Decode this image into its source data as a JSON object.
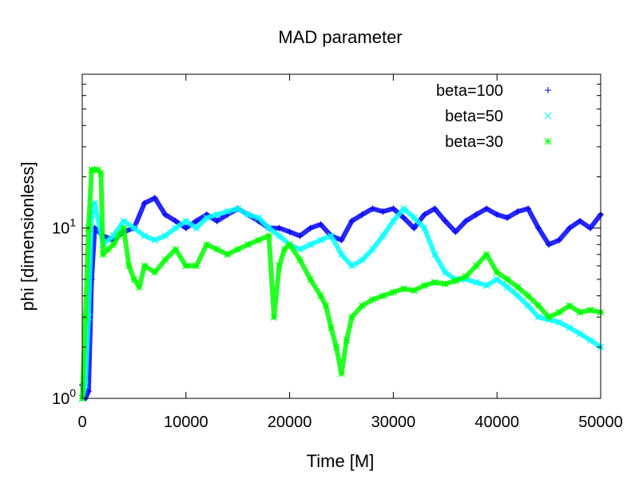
{
  "chart_data": {
    "type": "scatter",
    "title": "MAD parameter",
    "xlabel": "Time [M]",
    "ylabel": "phi [dimensionless]",
    "xlim": [
      0,
      50000
    ],
    "ylim": [
      1,
      80
    ],
    "yscale": "log",
    "grid": false,
    "legend_position": "top-right",
    "x_ticks": [
      0,
      10000,
      20000,
      30000,
      40000,
      50000
    ],
    "x_tick_labels": [
      "0",
      "10000",
      "20000",
      "30000",
      "40000",
      "50000"
    ],
    "y_ticks": [
      1,
      10
    ],
    "y_tick_labels": [
      {
        "base": "10",
        "exp": "0"
      },
      {
        "base": "10",
        "exp": "1"
      }
    ],
    "series": [
      {
        "name": "beta=100",
        "marker": "+",
        "color": "#0000ff",
        "x": [
          0,
          300,
          600,
          900,
          1200,
          2000,
          3000,
          4000,
          5000,
          6000,
          7000,
          8000,
          9000,
          10000,
          11000,
          12000,
          13000,
          14000,
          15000,
          16000,
          17000,
          18000,
          19000,
          20000,
          21000,
          22000,
          23000,
          24000,
          25000,
          26000,
          27000,
          28000,
          29000,
          30000,
          31000,
          32000,
          33000,
          34000,
          35000,
          36000,
          37000,
          38000,
          39000,
          40000,
          41000,
          42000,
          43000,
          44000,
          45000,
          46000,
          47000,
          48000,
          49000,
          50000
        ],
        "y": [
          1.2,
          1.0,
          1.1,
          5.0,
          10.0,
          9.0,
          8.5,
          9.5,
          10.0,
          14.0,
          15.0,
          12.0,
          11.0,
          10.0,
          11.0,
          12.0,
          11.0,
          12.0,
          13.0,
          12.0,
          11.0,
          10.0,
          10.0,
          9.5,
          9.0,
          10.0,
          10.5,
          9.0,
          8.5,
          11.0,
          12.0,
          13.0,
          12.5,
          13.0,
          11.5,
          10.0,
          12.0,
          13.0,
          11.0,
          9.5,
          11.0,
          12.0,
          13.0,
          12.0,
          11.5,
          12.5,
          13.0,
          10.0,
          8.0,
          8.5,
          10.0,
          11.0,
          10.0,
          12.0
        ]
      },
      {
        "name": "beta=50",
        "marker": "x",
        "color": "#00ffff",
        "x": [
          0,
          300,
          600,
          900,
          1200,
          2000,
          3000,
          4000,
          5000,
          6000,
          7000,
          8000,
          9000,
          10000,
          11000,
          12000,
          13000,
          14000,
          15000,
          16000,
          17000,
          18000,
          19000,
          20000,
          21000,
          22000,
          23000,
          24000,
          25000,
          26000,
          27000,
          28000,
          29000,
          30000,
          31000,
          32000,
          33000,
          34000,
          35000,
          36000,
          37000,
          38000,
          39000,
          40000,
          41000,
          42000,
          43000,
          44000,
          45000,
          46000,
          47000,
          48000,
          49000,
          50000
        ],
        "y": [
          1.0,
          1.2,
          3.0,
          12.0,
          14.0,
          8.0,
          9.0,
          11.0,
          10.0,
          9.0,
          8.5,
          9.0,
          10.0,
          11.0,
          10.0,
          11.5,
          12.0,
          12.5,
          13.0,
          12.0,
          11.5,
          10.0,
          9.0,
          8.0,
          7.5,
          8.0,
          8.5,
          9.0,
          7.0,
          6.0,
          6.5,
          7.5,
          9.0,
          11.0,
          13.0,
          11.5,
          10.0,
          7.0,
          5.5,
          5.0,
          5.0,
          4.8,
          4.6,
          5.0,
          4.5,
          4.0,
          3.5,
          3.0,
          2.9,
          2.8,
          2.6,
          2.4,
          2.2,
          2.0
        ]
      },
      {
        "name": "beta=30",
        "marker": "*",
        "color": "#00ff00",
        "x": [
          0,
          300,
          600,
          900,
          1200,
          1500,
          1800,
          2000,
          2500,
          3000,
          3500,
          4000,
          4500,
          5000,
          5500,
          6000,
          7000,
          8000,
          9000,
          10000,
          11000,
          12000,
          13000,
          14000,
          15000,
          16000,
          17000,
          18000,
          18500,
          19000,
          19500,
          20000,
          21000,
          22000,
          23000,
          23500,
          24000,
          24500,
          25000,
          25500,
          26000,
          27000,
          28000,
          29000,
          30000,
          31000,
          32000,
          33000,
          34000,
          35000,
          36000,
          37000,
          38000,
          39000,
          40000,
          41000,
          42000,
          43000,
          44000,
          45000,
          46000,
          47000,
          48000,
          49000,
          50000
        ],
        "y": [
          1.0,
          3.0,
          10.0,
          22.0,
          22.0,
          22.0,
          21.0,
          7.0,
          7.5,
          8.0,
          9.0,
          10.0,
          6.0,
          5.0,
          4.5,
          6.0,
          5.5,
          6.5,
          7.5,
          6.0,
          6.0,
          8.0,
          7.5,
          7.0,
          7.5,
          8.0,
          8.5,
          9.0,
          3.0,
          6.0,
          7.5,
          8.0,
          6.5,
          5.0,
          4.0,
          3.5,
          2.6,
          2.0,
          1.4,
          2.2,
          3.0,
          3.5,
          3.8,
          4.0,
          4.2,
          4.4,
          4.3,
          4.6,
          4.8,
          4.7,
          4.9,
          5.2,
          6.0,
          7.0,
          5.5,
          5.0,
          4.5,
          4.0,
          3.5,
          3.0,
          3.2,
          3.5,
          3.2,
          3.3,
          3.2
        ]
      }
    ]
  }
}
